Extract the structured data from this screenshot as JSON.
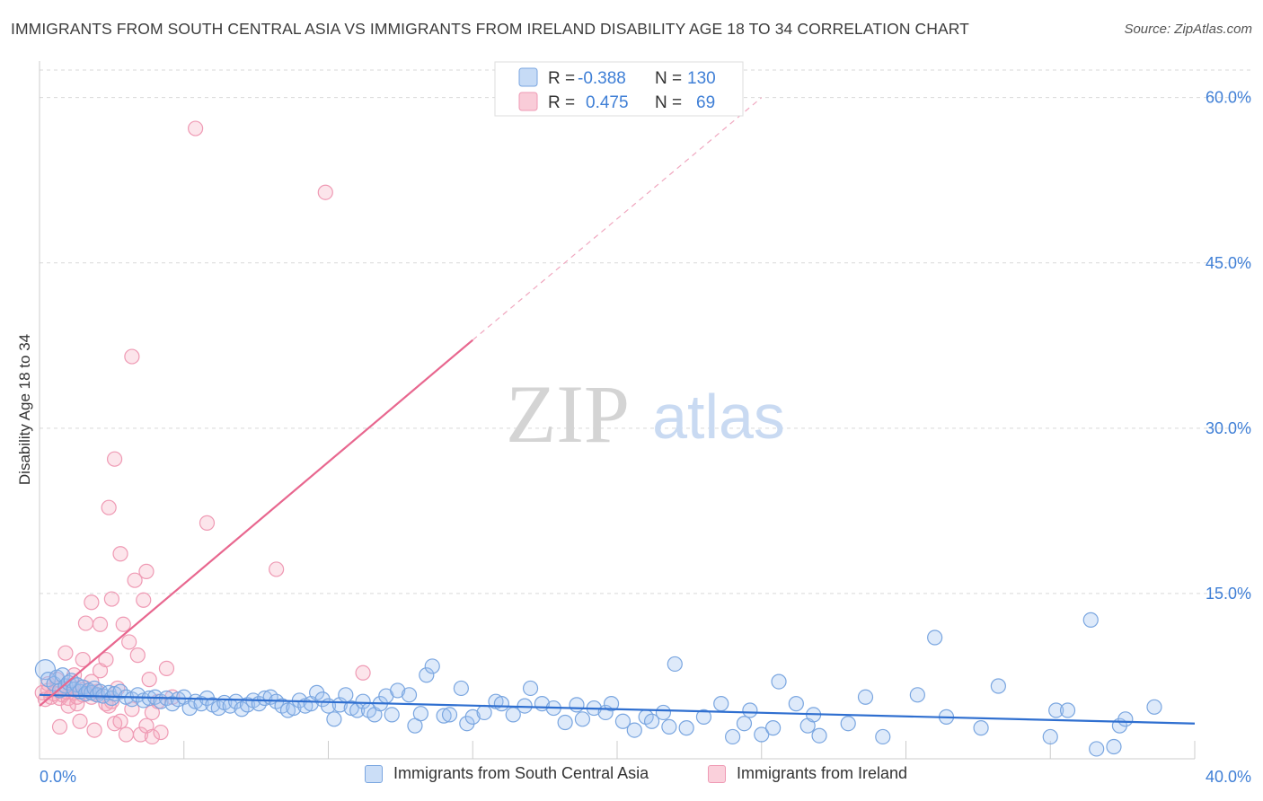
{
  "header": {
    "title": "IMMIGRANTS FROM SOUTH CENTRAL ASIA VS IMMIGRANTS FROM IRELAND DISABILITY AGE 18 TO 34 CORRELATION CHART",
    "source": "Source: ZipAtlas.com"
  },
  "watermark": {
    "zip": "ZIP",
    "atlas": "atlas"
  },
  "legend_top": {
    "rows": [
      {
        "r_label": "R =",
        "r_value": "-0.388",
        "n_label": "N =",
        "n_value": "130"
      },
      {
        "r_label": "R =",
        "r_value": "0.475",
        "n_label": "N =",
        "n_value": "69"
      }
    ]
  },
  "legend_bottom": {
    "items": [
      {
        "label": "Immigrants from South Central Asia"
      },
      {
        "label": "Immigrants from Ireland"
      }
    ]
  },
  "colors": {
    "blue_fill": "rgba(160,195,240,0.35)",
    "blue_stroke": "#7aa6e0",
    "blue_line": "#2f6fd0",
    "pink_fill": "rgba(245,170,190,0.30)",
    "pink_stroke": "#ef9ab4",
    "pink_line": "#e8678f",
    "tick_text": "#3f7fd6",
    "grid": "#d9d9d9"
  },
  "chart_data": {
    "type": "scatter",
    "title": "IMMIGRANTS FROM SOUTH CENTRAL ASIA VS IMMIGRANTS FROM IRELAND DISABILITY AGE 18 TO 34 CORRELATION CHART",
    "xlabel": "",
    "ylabel": "Disability Age 18 to 34",
    "xlim": [
      0,
      40
    ],
    "ylim": [
      0,
      62.5
    ],
    "x_tick_labels": [
      "0.0%",
      "40.0%"
    ],
    "y_ticks": [
      15,
      30,
      45,
      60
    ],
    "y_tick_labels": [
      "15.0%",
      "30.0%",
      "45.0%",
      "60.0%"
    ],
    "grid": true,
    "legend_position": "top-center",
    "series": [
      {
        "name": "Immigrants from South Central Asia",
        "R": -0.388,
        "N": 130,
        "trend": {
          "x": [
            0,
            40
          ],
          "y": [
            5.8,
            3.2
          ],
          "style": "solid"
        },
        "points": [
          [
            0.2,
            8.1
          ],
          [
            0.3,
            7.2
          ],
          [
            0.5,
            6.8
          ],
          [
            0.6,
            7.4
          ],
          [
            0.7,
            6.2
          ],
          [
            0.8,
            7.6
          ],
          [
            0.9,
            6.6
          ],
          [
            1.0,
            6.9
          ],
          [
            1.1,
            7.1
          ],
          [
            1.2,
            6.3
          ],
          [
            1.3,
            6.7
          ],
          [
            1.4,
            6.1
          ],
          [
            1.5,
            6.5
          ],
          [
            1.6,
            5.9
          ],
          [
            1.7,
            6.2
          ],
          [
            1.8,
            6.0
          ],
          [
            1.9,
            6.4
          ],
          [
            2.0,
            5.8
          ],
          [
            2.1,
            6.1
          ],
          [
            2.2,
            5.7
          ],
          [
            2.4,
            6.0
          ],
          [
            2.5,
            5.5
          ],
          [
            2.6,
            5.9
          ],
          [
            2.8,
            6.1
          ],
          [
            3.0,
            5.6
          ],
          [
            3.2,
            5.4
          ],
          [
            3.4,
            5.8
          ],
          [
            3.6,
            5.3
          ],
          [
            3.8,
            5.5
          ],
          [
            4.0,
            5.6
          ],
          [
            4.2,
            5.2
          ],
          [
            4.4,
            5.5
          ],
          [
            4.6,
            5.0
          ],
          [
            4.8,
            5.4
          ],
          [
            5.0,
            5.6
          ],
          [
            5.2,
            4.6
          ],
          [
            5.4,
            5.2
          ],
          [
            5.6,
            5.0
          ],
          [
            5.8,
            5.5
          ],
          [
            6.0,
            4.9
          ],
          [
            6.2,
            4.6
          ],
          [
            6.4,
            5.1
          ],
          [
            6.6,
            4.8
          ],
          [
            6.8,
            5.2
          ],
          [
            7.0,
            4.5
          ],
          [
            7.2,
            4.9
          ],
          [
            7.4,
            5.3
          ],
          [
            7.6,
            5.0
          ],
          [
            7.8,
            5.5
          ],
          [
            8.0,
            5.6
          ],
          [
            8.2,
            5.2
          ],
          [
            8.4,
            4.8
          ],
          [
            8.6,
            4.4
          ],
          [
            8.8,
            4.6
          ],
          [
            9.0,
            5.3
          ],
          [
            9.2,
            4.8
          ],
          [
            9.4,
            5.0
          ],
          [
            9.6,
            6.0
          ],
          [
            9.8,
            5.4
          ],
          [
            10.0,
            4.8
          ],
          [
            10.2,
            3.6
          ],
          [
            10.4,
            4.9
          ],
          [
            10.6,
            5.8
          ],
          [
            10.8,
            4.6
          ],
          [
            11.0,
            4.4
          ],
          [
            11.2,
            5.2
          ],
          [
            11.4,
            4.4
          ],
          [
            11.6,
            4.0
          ],
          [
            11.8,
            5.0
          ],
          [
            12.0,
            5.7
          ],
          [
            12.2,
            4.0
          ],
          [
            12.4,
            6.2
          ],
          [
            12.8,
            5.8
          ],
          [
            13.0,
            3.0
          ],
          [
            13.2,
            4.1
          ],
          [
            13.4,
            7.6
          ],
          [
            13.6,
            8.4
          ],
          [
            14.0,
            3.9
          ],
          [
            14.2,
            4.0
          ],
          [
            14.6,
            6.4
          ],
          [
            14.8,
            3.2
          ],
          [
            15.0,
            3.8
          ],
          [
            15.4,
            4.2
          ],
          [
            15.8,
            5.2
          ],
          [
            16.0,
            5.0
          ],
          [
            16.4,
            4.0
          ],
          [
            16.8,
            4.8
          ],
          [
            17.0,
            6.4
          ],
          [
            17.4,
            5.0
          ],
          [
            17.8,
            4.6
          ],
          [
            18.2,
            3.3
          ],
          [
            18.6,
            4.9
          ],
          [
            18.8,
            3.6
          ],
          [
            19.2,
            4.6
          ],
          [
            19.6,
            4.2
          ],
          [
            19.8,
            5.0
          ],
          [
            20.2,
            3.4
          ],
          [
            20.6,
            2.6
          ],
          [
            21.0,
            3.8
          ],
          [
            21.2,
            3.4
          ],
          [
            21.6,
            4.2
          ],
          [
            21.8,
            2.9
          ],
          [
            22.0,
            8.6
          ],
          [
            22.4,
            2.8
          ],
          [
            23.0,
            3.8
          ],
          [
            23.6,
            5.0
          ],
          [
            24.0,
            2.0
          ],
          [
            24.4,
            3.2
          ],
          [
            24.6,
            4.4
          ],
          [
            25.0,
            2.2
          ],
          [
            25.4,
            2.8
          ],
          [
            25.6,
            7.0
          ],
          [
            26.2,
            5.0
          ],
          [
            26.6,
            3.0
          ],
          [
            26.8,
            4.0
          ],
          [
            27.0,
            2.1
          ],
          [
            28.0,
            3.2
          ],
          [
            28.6,
            5.6
          ],
          [
            29.2,
            2.0
          ],
          [
            30.4,
            5.8
          ],
          [
            31.0,
            11.0
          ],
          [
            31.4,
            3.8
          ],
          [
            32.6,
            2.8
          ],
          [
            33.2,
            6.6
          ],
          [
            35.0,
            2.0
          ],
          [
            35.2,
            4.4
          ],
          [
            35.6,
            4.4
          ],
          [
            36.4,
            12.6
          ],
          [
            36.6,
            0.9
          ],
          [
            37.2,
            1.1
          ],
          [
            37.4,
            3.0
          ],
          [
            37.6,
            3.6
          ],
          [
            38.6,
            4.7
          ]
        ]
      },
      {
        "name": "Immigrants from Ireland",
        "R": 0.475,
        "N": 69,
        "trend": {
          "x": [
            0,
            15
          ],
          "y": [
            4.8,
            38.0
          ],
          "dashed_to": [
            25,
            60.0
          ]
        },
        "points": [
          [
            0.1,
            6.0
          ],
          [
            0.2,
            5.4
          ],
          [
            0.3,
            6.2
          ],
          [
            0.4,
            5.6
          ],
          [
            0.5,
            5.9
          ],
          [
            0.6,
            6.4
          ],
          [
            0.7,
            5.5
          ],
          [
            0.8,
            5.8
          ],
          [
            0.9,
            6.1
          ],
          [
            1.0,
            5.5
          ],
          [
            1.1,
            6.6
          ],
          [
            1.2,
            6.0
          ],
          [
            1.3,
            5.0
          ],
          [
            1.4,
            6.3
          ],
          [
            1.5,
            5.8
          ],
          [
            1.6,
            6.4
          ],
          [
            1.7,
            6.2
          ],
          [
            1.8,
            5.6
          ],
          [
            1.9,
            5.9
          ],
          [
            2.0,
            6.1
          ],
          [
            0.3,
            6.8
          ],
          [
            0.6,
            7.2
          ],
          [
            0.9,
            9.6
          ],
          [
            1.2,
            7.6
          ],
          [
            1.5,
            9.0
          ],
          [
            1.8,
            7.0
          ],
          [
            2.1,
            8.0
          ],
          [
            2.3,
            5.0
          ],
          [
            2.5,
            5.2
          ],
          [
            2.7,
            6.4
          ],
          [
            1.6,
            12.3
          ],
          [
            1.8,
            14.2
          ],
          [
            2.1,
            12.2
          ],
          [
            2.3,
            9.0
          ],
          [
            2.4,
            22.8
          ],
          [
            2.5,
            14.5
          ],
          [
            2.6,
            27.2
          ],
          [
            2.8,
            18.6
          ],
          [
            2.9,
            12.2
          ],
          [
            3.1,
            10.6
          ],
          [
            3.2,
            36.5
          ],
          [
            3.3,
            16.2
          ],
          [
            3.4,
            9.4
          ],
          [
            3.6,
            14.4
          ],
          [
            3.7,
            17.0
          ],
          [
            3.8,
            7.2
          ],
          [
            3.9,
            4.2
          ],
          [
            4.1,
            5.2
          ],
          [
            4.4,
            8.2
          ],
          [
            5.4,
            57.2
          ],
          [
            5.8,
            21.4
          ],
          [
            8.2,
            17.2
          ],
          [
            9.9,
            51.4
          ],
          [
            11.2,
            7.8
          ],
          [
            1.4,
            3.4
          ],
          [
            1.9,
            2.6
          ],
          [
            2.6,
            3.2
          ],
          [
            2.8,
            3.4
          ],
          [
            3.0,
            2.2
          ],
          [
            3.2,
            4.5
          ],
          [
            3.5,
            2.2
          ],
          [
            3.7,
            3.0
          ],
          [
            3.9,
            2.0
          ],
          [
            4.2,
            2.4
          ],
          [
            4.6,
            5.6
          ],
          [
            1.0,
            4.8
          ],
          [
            1.3,
            5.6
          ],
          [
            0.7,
            2.9
          ],
          [
            2.4,
            4.8
          ]
        ]
      }
    ]
  }
}
